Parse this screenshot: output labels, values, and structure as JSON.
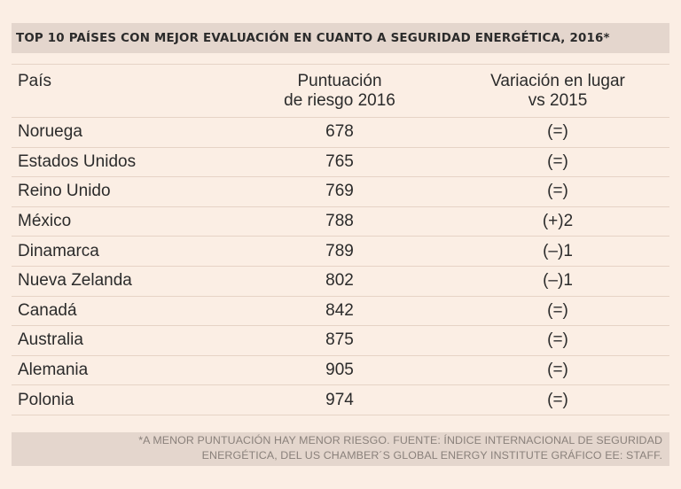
{
  "title": "TOP 10 PAÍSES CON MEJOR EVALUACIÓN EN CUANTO  A SEGURIDAD ENERGÉTICA, 2016*",
  "table": {
    "headers": {
      "country": "País",
      "score_line1": "Puntuación",
      "score_line2": "de riesgo 2016",
      "change_line1": "Variación en lugar",
      "change_line2": "vs 2015"
    },
    "rows": [
      {
        "country": "Noruega",
        "score": "678",
        "change": "(=)"
      },
      {
        "country": "Estados Unidos",
        "score": "765",
        "change": "(=)"
      },
      {
        "country": "Reino Unido",
        "score": "769",
        "change": "(=)"
      },
      {
        "country": "México",
        "score": "788",
        "change": "(+)2"
      },
      {
        "country": "Dinamarca",
        "score": "789",
        "change": "(–)1"
      },
      {
        "country": "Nueva Zelanda",
        "score": "802",
        "change": "(–)1"
      },
      {
        "country": "Canadá",
        "score": "842",
        "change": "(=)"
      },
      {
        "country": "Australia",
        "score": "875",
        "change": "(=)"
      },
      {
        "country": "Alemania",
        "score": "905",
        "change": "(=)"
      },
      {
        "country": "Polonia",
        "score": "974",
        "change": "(=)"
      }
    ]
  },
  "footnote": {
    "line1": "*A MENOR PUNTUACIÓN HAY MENOR RIESGO. FUENTE: ÍNDICE INTERNACIONAL DE SEGURIDAD",
    "line2": "ENERGÉTICA, DEL US CHAMBER´S GLOBAL ENERGY INSTITUTE  GRÁFICO EE: STAFF."
  }
}
